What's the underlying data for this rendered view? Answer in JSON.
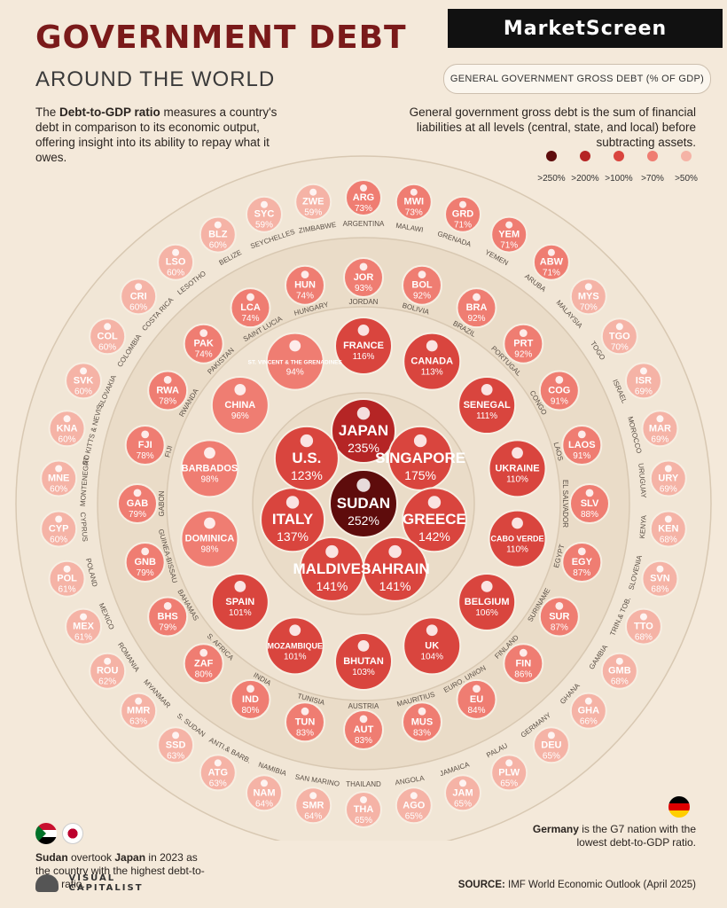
{
  "header": {
    "title": "GOVERNMENT DEBT",
    "subtitle": "AROUND THE WORLD",
    "brand": "MarketScreen",
    "metric": "GENERAL GOVERNMENT GROSS DEBT (% OF GDP)"
  },
  "intro": {
    "bold": "Debt-to-GDP ratio",
    "pre": "The ",
    "post": " measures a country's debt in comparison to its economic output, offering insight into its ability to repay what it owes."
  },
  "definition": "General government gross debt is the sum of financial liabilities at all levels (central, state, and local) before subtracting assets.",
  "legend": {
    "labels": [
      ">250%",
      ">200%",
      ">100%",
      ">70%",
      ">50%"
    ],
    "colors": [
      "#5e0c0c",
      "#b52525",
      "#d9453e",
      "#ef7d72",
      "#f5b3a6"
    ]
  },
  "notes": {
    "left_bold1": "Sudan",
    "left_mid": " overtook ",
    "left_bold2": "Japan",
    "left_rest": " in 2023 as the country with the highest debt-to-GDP ratio.",
    "right_bold": "Germany",
    "right_rest": " is the G7 nation with the lowest debt-to-GDP ratio."
  },
  "logo": {
    "line1": "VISUAL",
    "line2": "CAPITALIST"
  },
  "source": {
    "label": "SOURCE:",
    "text": " IMF World Economic Outlook (April 2025)"
  },
  "chart_data": {
    "type": "radial-bubble",
    "title": "GOVERNMENT DEBT AROUND THE WORLD",
    "unit": "% of GDP",
    "rings": [
      {
        "ring": 0,
        "countries": [
          {
            "name": "SUDAN",
            "value": 252
          }
        ]
      },
      {
        "ring": 1,
        "countries": [
          {
            "name": "JAPAN",
            "value": 235
          },
          {
            "name": "SINGAPORE",
            "value": 175
          },
          {
            "name": "GREECE",
            "value": 142
          },
          {
            "name": "BAHRAIN",
            "value": 141
          },
          {
            "name": "MALDIVES",
            "value": 141
          },
          {
            "name": "ITALY",
            "value": 137
          },
          {
            "name": "U.S.",
            "value": 123
          }
        ]
      },
      {
        "ring": 2,
        "countries": [
          {
            "name": "FRANCE",
            "value": 116
          },
          {
            "name": "CANADA",
            "value": 113
          },
          {
            "name": "SENEGAL",
            "value": 111
          },
          {
            "name": "UKRAINE",
            "value": 110
          },
          {
            "name": "CABO VERDE",
            "value": 110
          },
          {
            "name": "BELGIUM",
            "value": 106
          },
          {
            "name": "UK",
            "value": 104
          },
          {
            "name": "BHUTAN",
            "value": 103
          },
          {
            "name": "MOZAMBIQUE",
            "value": 101
          },
          {
            "name": "SPAIN",
            "value": 101
          },
          {
            "name": "DOMINICA",
            "value": 98
          },
          {
            "name": "BARBADOS",
            "value": 98
          },
          {
            "name": "CHINA",
            "value": 96
          },
          {
            "name": "ST. VINCENT & THE GRENADINES",
            "value": 94
          }
        ]
      },
      {
        "ring": 3,
        "countries": [
          {
            "code": "JOR",
            "name": "JORDAN",
            "value": 93
          },
          {
            "code": "BOL",
            "name": "BOLIVIA",
            "value": 92
          },
          {
            "code": "BRA",
            "name": "BRAZIL",
            "value": 92
          },
          {
            "code": "PRT",
            "name": "PORTUGAL",
            "value": 92
          },
          {
            "code": "COG",
            "name": "CONGO",
            "value": 91
          },
          {
            "code": "LAOS",
            "name": "LAOS",
            "value": 91
          },
          {
            "code": "SLV",
            "name": "EL SALVADOR",
            "value": 88
          },
          {
            "code": "EGY",
            "name": "EGYPT",
            "value": 87
          },
          {
            "code": "SUR",
            "name": "SURINAME",
            "value": 87
          },
          {
            "code": "FIN",
            "name": "FINLAND",
            "value": 86
          },
          {
            "code": "EU",
            "name": "EURO. UNION",
            "value": 84
          },
          {
            "code": "MUS",
            "name": "MAURITIUS",
            "value": 83
          },
          {
            "code": "AUT",
            "name": "AUSTRIA",
            "value": 83
          },
          {
            "code": "TUN",
            "name": "TUNISIA",
            "value": 83
          },
          {
            "code": "IND",
            "name": "INDIA",
            "value": 80
          },
          {
            "code": "ZAF",
            "name": "S. AFRICA",
            "value": 80
          },
          {
            "code": "BHS",
            "name": "BAHAMAS",
            "value": 79
          },
          {
            "code": "GNB",
            "name": "GUINEA-BISSAU",
            "value": 79
          },
          {
            "code": "GAB",
            "name": "GABON",
            "value": 79
          },
          {
            "code": "FJI",
            "name": "FIJI",
            "value": 78
          },
          {
            "code": "RWA",
            "name": "RWANDA",
            "value": 78
          },
          {
            "code": "PAK",
            "name": "PAKISTAN",
            "value": 74
          },
          {
            "code": "LCA",
            "name": "SAINT LUCIA",
            "value": 74
          },
          {
            "code": "HUN",
            "name": "HUNGARY",
            "value": 74
          }
        ]
      },
      {
        "ring": 4,
        "countries": [
          {
            "code": "ARG",
            "name": "ARGENTINA",
            "value": 73
          },
          {
            "code": "MWI",
            "name": "MALAWI",
            "value": 73
          },
          {
            "code": "GRD",
            "name": "GRENADA",
            "value": 71
          },
          {
            "code": "YEM",
            "name": "YEMEN",
            "value": 71
          },
          {
            "code": "ABW",
            "name": "ARUBA",
            "value": 71
          },
          {
            "code": "MYS",
            "name": "MALAYSIA",
            "value": 70
          },
          {
            "code": "TGO",
            "name": "TOGO",
            "value": 70
          },
          {
            "code": "ISR",
            "name": "ISRAEL",
            "value": 69
          },
          {
            "code": "MAR",
            "name": "MOROCCO",
            "value": 69
          },
          {
            "code": "URY",
            "name": "URUGUAY",
            "value": 69
          },
          {
            "code": "KEN",
            "name": "KENYA",
            "value": 68
          },
          {
            "code": "SVN",
            "name": "SLOVENIA",
            "value": 68
          },
          {
            "code": "TTO",
            "name": "TRIN.& TOB.",
            "value": 68
          },
          {
            "code": "GMB",
            "name": "GAMBIA",
            "value": 68
          },
          {
            "code": "GHA",
            "name": "GHANA",
            "value": 66
          },
          {
            "code": "DEU",
            "name": "GERMANY",
            "value": 65
          },
          {
            "code": "PLW",
            "name": "PALAU",
            "value": 65
          },
          {
            "code": "JAM",
            "name": "JAMAICA",
            "value": 65
          },
          {
            "code": "AGO",
            "name": "ANGOLA",
            "value": 65
          },
          {
            "code": "THA",
            "name": "THAILAND",
            "value": 65
          },
          {
            "code": "SMR",
            "name": "SAN MARINO",
            "value": 64
          },
          {
            "code": "NAM",
            "name": "NAMIBIA",
            "value": 64
          },
          {
            "code": "ATG",
            "name": "ANTI.& BARB.",
            "value": 63
          },
          {
            "code": "SSD",
            "name": "S. SUDAN",
            "value": 63
          },
          {
            "code": "MMR",
            "name": "MYANMAR",
            "value": 63
          },
          {
            "code": "ROU",
            "name": "ROMANIA",
            "value": 62
          },
          {
            "code": "MEX",
            "name": "MEXICO",
            "value": 61
          },
          {
            "code": "POL",
            "name": "POLAND",
            "value": 61
          },
          {
            "code": "CYP",
            "name": "CYPRUS",
            "value": 60
          },
          {
            "code": "MNE",
            "name": "MONTENEGRO",
            "value": 60
          },
          {
            "code": "KNA",
            "name": "ST. KITTS & NEVIS",
            "value": 60
          },
          {
            "code": "SVK",
            "name": "SLOVAKIA",
            "value": 60
          },
          {
            "code": "COL",
            "name": "COLOMBIA",
            "value": 60
          },
          {
            "code": "CRI",
            "name": "COSTA RICA",
            "value": 60
          },
          {
            "code": "LSO",
            "name": "LESOTHO",
            "value": 60
          },
          {
            "code": "BLZ",
            "name": "BELIZE",
            "value": 60
          },
          {
            "code": "SYC",
            "name": "SEYCHELLES",
            "value": 59
          },
          {
            "code": "ZWE",
            "name": "ZIMBABWE",
            "value": 59
          }
        ]
      }
    ]
  }
}
